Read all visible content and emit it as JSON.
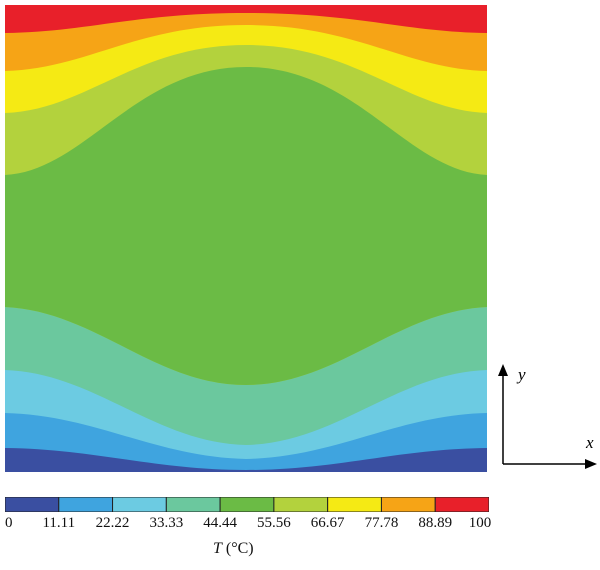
{
  "chart_data": {
    "type": "heatmap",
    "subtype": "filled-contour",
    "colorbar": {
      "levels": [
        "0",
        "11.11",
        "22.22",
        "33.33",
        "44.44",
        "55.56",
        "66.67",
        "77.78",
        "88.89",
        "100"
      ],
      "colors": [
        "#3a4fa1",
        "#3fa4df",
        "#6ccbe2",
        "#6bc89e",
        "#6bbb45",
        "#b3d23d",
        "#f5ea14",
        "#f6a416",
        "#e8202a"
      ],
      "title_var": "T",
      "title_unit": "(°C)"
    },
    "axes_indicator": {
      "x_label": "x",
      "y_label": "y"
    }
  }
}
